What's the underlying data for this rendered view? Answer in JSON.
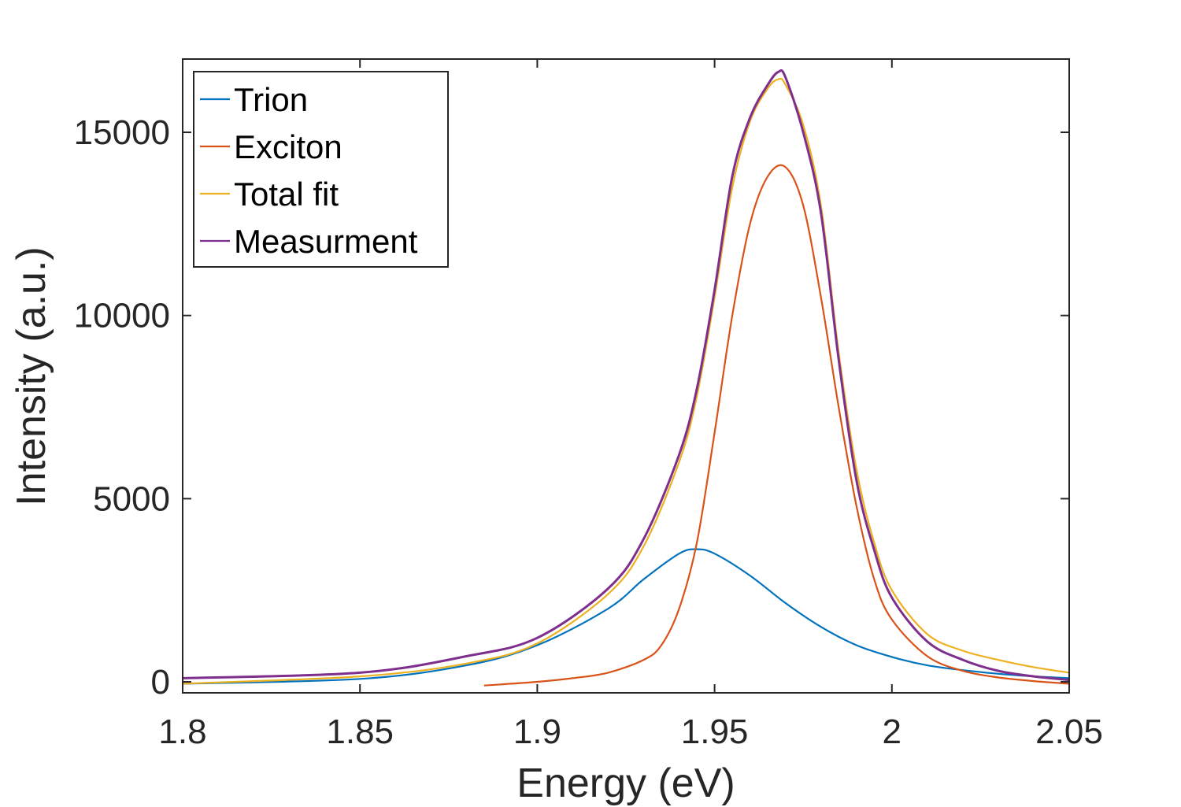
{
  "chart_data": {
    "type": "line",
    "title": "",
    "xlabel": "Energy (eV)",
    "ylabel": "Intensity (a.u.)",
    "xlim": [
      1.8,
      2.05
    ],
    "ylim": [
      -300,
      17000
    ],
    "xticks": [
      1.8,
      1.85,
      1.9,
      1.95,
      2.0,
      2.05
    ],
    "xtick_labels": [
      "1.8",
      "1.85",
      "1.9",
      "1.95",
      "2",
      "2.05"
    ],
    "yticks": [
      0,
      5000,
      10000,
      15000
    ],
    "ytick_labels": [
      "0",
      "5000",
      "10000",
      "15000"
    ],
    "grid": false,
    "legend_position": "top-left",
    "series": [
      {
        "name": "Trion",
        "color": "#0072BD",
        "x": [
          1.8,
          1.85,
          1.88,
          1.9,
          1.92,
          1.93,
          1.94,
          1.945,
          1.95,
          1.96,
          1.97,
          1.98,
          1.99,
          2.0,
          2.01,
          2.02,
          2.03,
          2.04,
          2.05
        ],
        "y": [
          -50,
          80,
          450,
          1000,
          2000,
          2800,
          3500,
          3620,
          3500,
          2900,
          2150,
          1500,
          1000,
          680,
          450,
          320,
          220,
          150,
          100
        ]
      },
      {
        "name": "Exciton",
        "color": "#D95319",
        "x": [
          1.885,
          1.9,
          1.91,
          1.92,
          1.93,
          1.935,
          1.94,
          1.945,
          1.95,
          1.955,
          1.96,
          1.965,
          1.97,
          1.975,
          1.98,
          1.985,
          1.99,
          1.995,
          2.0,
          2.01,
          2.02,
          2.03,
          2.04,
          2.05
        ],
        "y": [
          -100,
          0,
          100,
          250,
          600,
          1000,
          2000,
          3800,
          6800,
          10000,
          12500,
          13800,
          14050,
          13000,
          10500,
          7500,
          4800,
          2800,
          1700,
          700,
          300,
          120,
          20,
          -50
        ]
      },
      {
        "name": "Total fit",
        "color": "#EDB120",
        "x": [
          1.8,
          1.85,
          1.88,
          1.9,
          1.92,
          1.93,
          1.94,
          1.945,
          1.95,
          1.955,
          1.96,
          1.965,
          1.968,
          1.97,
          1.975,
          1.98,
          1.985,
          1.99,
          1.995,
          2.0,
          2.01,
          2.02,
          2.03,
          2.04,
          2.05
        ],
        "y": [
          -50,
          150,
          500,
          1050,
          2400,
          3700,
          6000,
          7800,
          10500,
          13500,
          15300,
          16200,
          16450,
          16300,
          15200,
          13000,
          9000,
          5800,
          3800,
          2500,
          1300,
          850,
          600,
          400,
          250
        ]
      },
      {
        "name": "Measurment",
        "color": "#7E2F8E",
        "x": [
          1.8,
          1.85,
          1.88,
          1.9,
          1.92,
          1.93,
          1.94,
          1.945,
          1.95,
          1.955,
          1.96,
          1.965,
          1.968,
          1.97,
          1.975,
          1.98,
          1.985,
          1.99,
          1.995,
          2.0,
          2.01,
          2.02,
          2.03,
          2.04,
          2.05
        ],
        "y": [
          100,
          250,
          700,
          1200,
          2550,
          3900,
          6200,
          8000,
          10700,
          13800,
          15400,
          16300,
          16650,
          16500,
          15000,
          12800,
          8800,
          5500,
          3600,
          2300,
          1100,
          600,
          300,
          150,
          50
        ]
      }
    ]
  }
}
